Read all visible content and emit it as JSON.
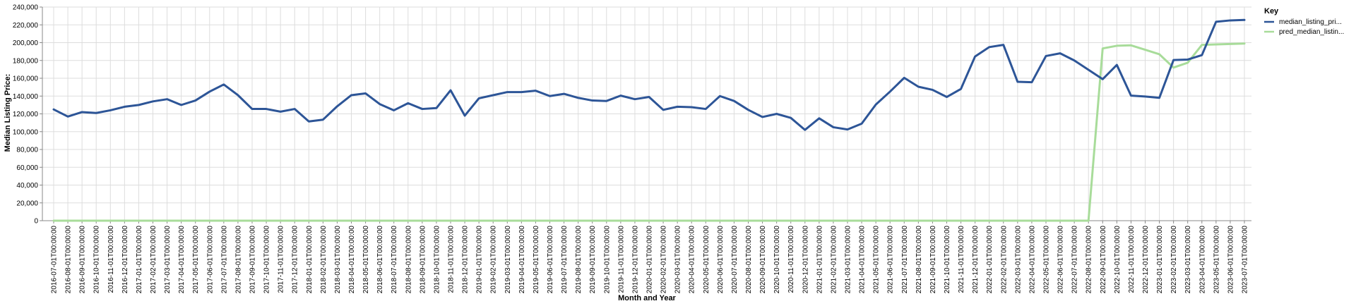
{
  "chart_data": {
    "type": "line",
    "xlabel": "Month and Year",
    "ylabel": "Median Listing Price:",
    "ylim": [
      0,
      240000
    ],
    "yticks": [
      "0",
      "20,000",
      "40,000",
      "60,000",
      "80,000",
      "100,000",
      "120,000",
      "140,000",
      "160,000",
      "180,000",
      "200,000",
      "220,000",
      "240,000"
    ],
    "grid": true,
    "legend": {
      "title": "Key",
      "placement": "right"
    },
    "x": [
      "2016-07-01T00:00:00",
      "2016-08-01T00:00:00",
      "2016-09-01T00:00:00",
      "2016-10-01T00:00:00",
      "2016-11-01T00:00:00",
      "2016-12-01T00:00:00",
      "2017-01-01T00:00:00",
      "2017-02-01T00:00:00",
      "2017-03-01T00:00:00",
      "2017-04-01T00:00:00",
      "2017-05-01T00:00:00",
      "2017-06-01T00:00:00",
      "2017-07-01T00:00:00",
      "2017-08-01T00:00:00",
      "2017-09-01T00:00:00",
      "2017-10-01T00:00:00",
      "2017-11-01T00:00:00",
      "2017-12-01T00:00:00",
      "2018-01-01T00:00:00",
      "2018-02-01T00:00:00",
      "2018-03-01T00:00:00",
      "2018-04-01T00:00:00",
      "2018-05-01T00:00:00",
      "2018-06-01T00:00:00",
      "2018-07-01T00:00:00",
      "2018-08-01T00:00:00",
      "2018-09-01T00:00:00",
      "2018-10-01T00:00:00",
      "2018-11-01T00:00:00",
      "2018-12-01T00:00:00",
      "2019-01-01T00:00:00",
      "2019-02-01T00:00:00",
      "2019-03-01T00:00:00",
      "2019-04-01T00:00:00",
      "2019-05-01T00:00:00",
      "2019-06-01T00:00:00",
      "2019-07-01T00:00:00",
      "2019-08-01T00:00:00",
      "2019-09-01T00:00:00",
      "2019-10-01T00:00:00",
      "2019-11-01T00:00:00",
      "2019-12-01T00:00:00",
      "2020-01-01T00:00:00",
      "2020-02-01T00:00:00",
      "2020-03-01T00:00:00",
      "2020-04-01T00:00:00",
      "2020-05-01T00:00:00",
      "2020-06-01T00:00:00",
      "2020-07-01T00:00:00",
      "2020-08-01T00:00:00",
      "2020-09-01T00:00:00",
      "2020-10-01T00:00:00",
      "2020-11-01T00:00:00",
      "2020-12-01T00:00:00",
      "2021-01-01T00:00:00",
      "2021-02-01T00:00:00",
      "2021-03-01T00:00:00",
      "2021-04-01T00:00:00",
      "2021-05-01T00:00:00",
      "2021-06-01T00:00:00",
      "2021-07-01T00:00:00",
      "2021-08-01T00:00:00",
      "2021-09-01T00:00:00",
      "2021-10-01T00:00:00",
      "2021-11-01T00:00:00",
      "2021-12-01T00:00:00",
      "2022-01-01T00:00:00",
      "2022-02-01T00:00:00",
      "2022-03-01T00:00:00",
      "2022-04-01T00:00:00",
      "2022-05-01T00:00:00",
      "2022-06-01T00:00:00",
      "2022-07-01T00:00:00",
      "2022-08-01T00:00:00",
      "2022-09-01T00:00:00",
      "2022-10-01T00:00:00",
      "2022-11-01T00:00:00",
      "2022-12-01T00:00:00",
      "2023-01-01T00:00:00",
      "2023-02-01T00:00:00",
      "2023-03-01T00:00:00",
      "2023-04-01T00:00:00",
      "2023-05-01T00:00:00",
      "2023-06-01T00:00:00",
      "2023-07-01T00:00:00"
    ],
    "series": [
      {
        "name": "median_listing_pri...",
        "color": "#2d5597",
        "values": [
          125000,
          117000,
          122000,
          121000,
          124000,
          128000,
          130000,
          134000,
          136500,
          130000,
          135000,
          145000,
          153000,
          141000,
          125500,
          125500,
          122500,
          125500,
          111500,
          113500,
          128500,
          141000,
          143000,
          131000,
          124000,
          132000,
          125500,
          126500,
          146500,
          118000,
          137500,
          141000,
          144500,
          144500,
          146000,
          140000,
          142500,
          138000,
          135000,
          134500,
          140500,
          136500,
          139000,
          124500,
          128000,
          127500,
          125500,
          140000,
          134500,
          124500,
          116500,
          120000,
          115500,
          102000,
          115000,
          105000,
          102500,
          109000,
          130500,
          145000,
          160500,
          150500,
          147000,
          139000,
          148000,
          184500,
          195000,
          197500,
          156000,
          155500,
          185000,
          188000,
          180000,
          169500,
          159000,
          175000,
          140500,
          139500,
          138000,
          180500,
          181000,
          186000,
          223500,
          225000,
          225500
        ]
      },
      {
        "name": "pred_median_listin...",
        "color": "#a8dc9a",
        "values": [
          0,
          0,
          0,
          0,
          0,
          0,
          0,
          0,
          0,
          0,
          0,
          0,
          0,
          0,
          0,
          0,
          0,
          0,
          0,
          0,
          0,
          0,
          0,
          0,
          0,
          0,
          0,
          0,
          0,
          0,
          0,
          0,
          0,
          0,
          0,
          0,
          0,
          0,
          0,
          0,
          0,
          0,
          0,
          0,
          0,
          0,
          0,
          0,
          0,
          0,
          0,
          0,
          0,
          0,
          0,
          0,
          0,
          0,
          0,
          0,
          0,
          0,
          0,
          0,
          0,
          0,
          0,
          0,
          0,
          0,
          0,
          0,
          0,
          0,
          193500,
          196500,
          197000,
          192000,
          187000,
          172000,
          177500,
          197500,
          198000,
          198500,
          199000
        ]
      }
    ]
  }
}
